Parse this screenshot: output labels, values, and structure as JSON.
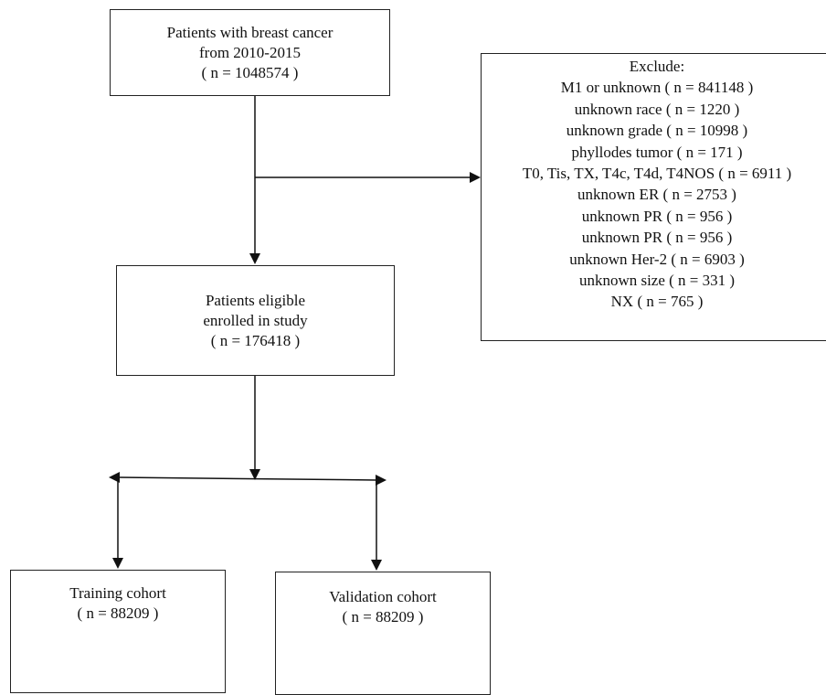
{
  "top_box": {
    "lines": [
      "Patients with breast cancer",
      "from 2010-2015",
      "( n = 1048574 )"
    ]
  },
  "exclude_box": {
    "lines": [
      "Exclude:",
      "M1 or unknown ( n = 841148 )",
      "unknown race ( n = 1220 )",
      "unknown grade ( n = 10998 )",
      "phyllodes tumor ( n = 171 )",
      "T0, Tis, TX, T4c, T4d, T4NOS ( n = 6911 )",
      "unknown ER ( n = 2753 )",
      "unknown PR ( n = 956 )",
      "unknown PR ( n = 956 )",
      "unknown Her-2 ( n = 6903 )",
      "unknown size ( n = 331 )",
      "NX ( n = 765 )"
    ]
  },
  "eligible_box": {
    "lines": [
      "Patients eligible",
      "enrolled in study",
      "( n = 176418 )"
    ]
  },
  "training_box": {
    "lines": [
      "Training cohort",
      "( n = 88209 )"
    ]
  },
  "validation_box": {
    "lines": [
      "Validation cohort",
      "( n = 88209 )"
    ]
  }
}
